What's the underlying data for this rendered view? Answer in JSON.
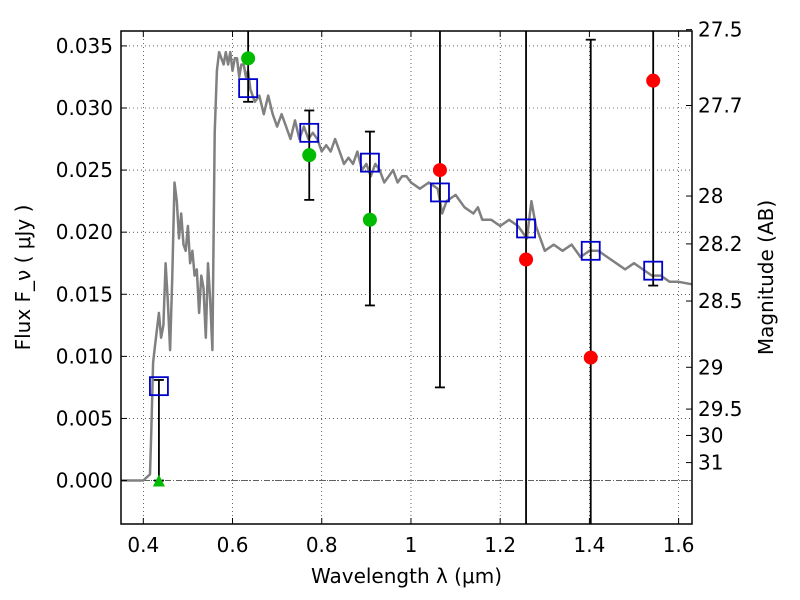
{
  "chart_data": {
    "type": "scatter",
    "title": "",
    "xlabel": "Wavelength  λ (μm)",
    "ylabel": "Flux  F_ν  ( μJy )",
    "y2label": "Magnitude (AB)",
    "xlim": [
      0.35,
      1.63
    ],
    "ylim": [
      -0.0035,
      0.0362
    ],
    "grid": true,
    "grid_style": "dotted",
    "x_ticks": [
      0.4,
      0.6,
      0.8,
      1.0,
      1.2,
      1.4,
      1.6
    ],
    "x_tick_labels": [
      "0.4",
      "0.6",
      "0.8",
      "1",
      "1.2",
      "1.4",
      "1.6"
    ],
    "y_ticks": [
      0.0,
      0.005,
      0.01,
      0.015,
      0.02,
      0.025,
      0.03,
      0.035
    ],
    "y_tick_labels": [
      "0.000",
      "0.005",
      "0.010",
      "0.015",
      "0.020",
      "0.025",
      "0.030",
      "0.035"
    ],
    "mag_ticks": [
      27.5,
      27.7,
      28,
      28.2,
      28.5,
      29,
      29.5,
      30,
      31
    ],
    "mag_tick_labels": [
      "27.5",
      "27.7",
      "28",
      "28.2",
      "28.5",
      "29",
      "29.5",
      "30",
      "31"
    ],
    "colors": {
      "model": "#808080",
      "observed_detection": "#00bb00",
      "observed_upper": "#ff0000",
      "model_photometry": "#0000cc",
      "error_bar": "#000000",
      "zero_line": "#606060"
    },
    "series": [
      {
        "style": "line",
        "color": "#808080",
        "x": [
          0.35,
          0.4,
          0.415,
          0.418,
          0.422,
          0.425,
          0.43,
          0.435,
          0.44,
          0.445,
          0.45,
          0.455,
          0.46,
          0.465,
          0.47,
          0.475,
          0.48,
          0.485,
          0.49,
          0.495,
          0.5,
          0.505,
          0.51,
          0.515,
          0.52,
          0.525,
          0.53,
          0.535,
          0.54,
          0.545,
          0.55,
          0.555,
          0.56,
          0.565,
          0.57,
          0.575,
          0.58,
          0.585,
          0.59,
          0.595,
          0.6,
          0.605,
          0.61,
          0.615,
          0.62,
          0.625,
          0.63,
          0.635,
          0.64,
          0.65,
          0.66,
          0.67,
          0.68,
          0.69,
          0.7,
          0.71,
          0.72,
          0.73,
          0.74,
          0.75,
          0.76,
          0.77,
          0.78,
          0.79,
          0.8,
          0.81,
          0.82,
          0.83,
          0.84,
          0.85,
          0.86,
          0.87,
          0.88,
          0.89,
          0.9,
          0.91,
          0.92,
          0.93,
          0.94,
          0.95,
          0.96,
          0.97,
          0.98,
          0.99,
          1.0,
          1.02,
          1.04,
          1.06,
          1.07,
          1.08,
          1.1,
          1.12,
          1.14,
          1.15,
          1.16,
          1.18,
          1.2,
          1.22,
          1.24,
          1.26,
          1.27,
          1.28,
          1.29,
          1.3,
          1.32,
          1.34,
          1.36,
          1.38,
          1.4,
          1.42,
          1.44,
          1.46,
          1.48,
          1.5,
          1.52,
          1.54,
          1.56,
          1.58,
          1.6,
          1.63
        ],
        "values": [
          0.0,
          0.0,
          0.0005,
          0.004,
          0.0095,
          0.0105,
          0.012,
          0.0135,
          0.0115,
          0.0125,
          0.0175,
          0.0145,
          0.0105,
          0.0165,
          0.024,
          0.0225,
          0.0195,
          0.0215,
          0.019,
          0.0185,
          0.0205,
          0.0175,
          0.0185,
          0.0165,
          0.017,
          0.0135,
          0.0165,
          0.0155,
          0.0115,
          0.0175,
          0.0145,
          0.0105,
          0.028,
          0.033,
          0.0345,
          0.034,
          0.0335,
          0.0345,
          0.0335,
          0.0345,
          0.033,
          0.034,
          0.034,
          0.0325,
          0.0335,
          0.0335,
          0.0325,
          0.033,
          0.0315,
          0.0305,
          0.031,
          0.0295,
          0.031,
          0.0295,
          0.0285,
          0.0295,
          0.0285,
          0.0275,
          0.029,
          0.0275,
          0.0285,
          0.0275,
          0.028,
          0.0275,
          0.0265,
          0.027,
          0.0265,
          0.0275,
          0.0265,
          0.0255,
          0.026,
          0.0255,
          0.0265,
          0.025,
          0.0255,
          0.0245,
          0.0255,
          0.025,
          0.024,
          0.0245,
          0.025,
          0.024,
          0.0245,
          0.0245,
          0.024,
          0.0235,
          0.024,
          0.0235,
          0.0215,
          0.0225,
          0.023,
          0.022,
          0.0215,
          0.022,
          0.021,
          0.021,
          0.0205,
          0.021,
          0.0205,
          0.0195,
          0.0225,
          0.0205,
          0.0195,
          0.0185,
          0.019,
          0.0185,
          0.019,
          0.018,
          0.0185,
          0.0185,
          0.018,
          0.0175,
          0.017,
          0.0175,
          0.017,
          0.0165,
          0.0165,
          0.016,
          0.016,
          0.0158
        ]
      },
      {
        "style": "open-square",
        "color": "#0000cc",
        "x": [
          0.435,
          0.635,
          0.772,
          0.908,
          1.065,
          1.258,
          1.403,
          1.543
        ],
        "values": [
          0.0076,
          0.0316,
          0.028,
          0.0256,
          0.0232,
          0.0203,
          0.0185,
          0.0169
        ]
      },
      {
        "style": "filled-circle",
        "color": "#00bb00",
        "x": [
          0.635,
          0.772,
          0.908
        ],
        "values": [
          0.034,
          0.0262,
          0.021
        ]
      },
      {
        "style": "filled-circle",
        "color": "#ff0000",
        "x": [
          1.065,
          1.258,
          1.403,
          1.543
        ],
        "values": [
          0.025,
          0.0178,
          0.0099,
          0.0322
        ]
      },
      {
        "style": "triangle",
        "color": "#00bb00",
        "x": [
          0.435
        ],
        "values": [
          0.0
        ]
      }
    ],
    "error_bars": [
      {
        "x": 0.435,
        "low": 0.0,
        "high": 0.0081
      },
      {
        "x": 0.635,
        "low": 0.0305,
        "high": 0.0362
      },
      {
        "x": 0.772,
        "low": 0.0226,
        "high": 0.0298
      },
      {
        "x": 0.908,
        "low": 0.0141,
        "high": 0.0281
      },
      {
        "x": 1.065,
        "low": 0.0075,
        "high": 0.0362
      },
      {
        "x": 1.258,
        "low": -0.0035,
        "high": 0.0362
      },
      {
        "x": 1.403,
        "low": -0.0035,
        "high": 0.0355
      },
      {
        "x": 1.543,
        "low": 0.0157,
        "high": 0.0362
      }
    ]
  }
}
